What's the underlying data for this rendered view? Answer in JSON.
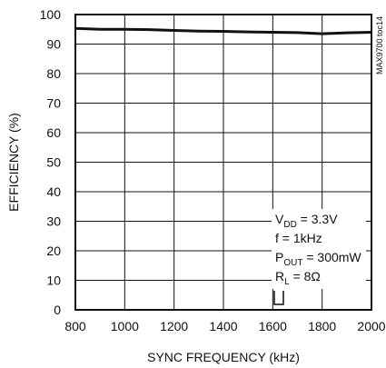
{
  "chart_data": {
    "type": "line",
    "title": "",
    "xlabel": "SYNC FREQUENCY (kHz)",
    "ylabel": "EFFICIENCY (%)",
    "xlim": [
      800,
      2000
    ],
    "ylim": [
      0,
      100
    ],
    "xticks": [
      800,
      1000,
      1200,
      1400,
      1600,
      1800,
      2000
    ],
    "yticks": [
      0,
      10,
      20,
      30,
      40,
      50,
      60,
      70,
      80,
      90,
      100
    ],
    "grid": true,
    "series": [
      {
        "x": [
          800,
          900,
          1000,
          1100,
          1200,
          1300,
          1400,
          1500,
          1600,
          1700,
          1800,
          1900,
          2000
        ],
        "y": [
          95.3,
          95.0,
          95.0,
          94.9,
          94.6,
          94.4,
          94.3,
          94.1,
          94.0,
          93.9,
          93.5,
          93.8,
          94.0
        ]
      }
    ],
    "side_label": "MAX9700 toc14",
    "annotation": {
      "lines": [
        {
          "main": "V",
          "sub": "DD",
          "rest": " = 3.3V"
        },
        {
          "main": "f = 1kHz",
          "sub": "",
          "rest": ""
        },
        {
          "main": "P",
          "sub": "OUT",
          "rest": " = 300mW"
        },
        {
          "main": "R",
          "sub": "L",
          "rest": " = 8Ω"
        }
      ]
    }
  },
  "colors": {
    "line": "#111111",
    "grid": "#111111",
    "background": "#ffffff"
  }
}
